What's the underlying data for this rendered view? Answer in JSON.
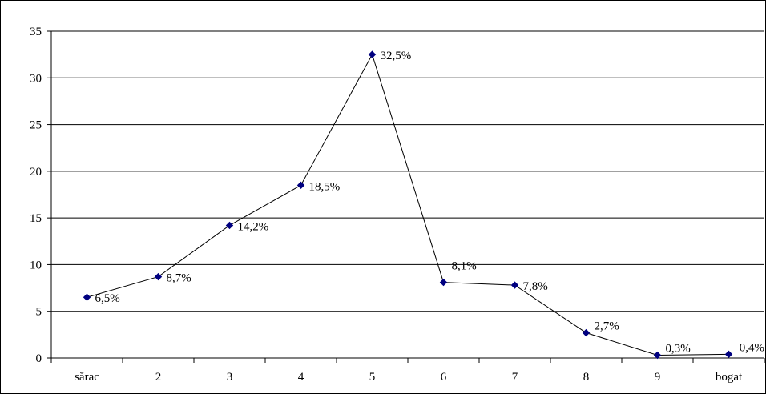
{
  "chart_data": {
    "type": "line",
    "title": "",
    "xlabel": "",
    "ylabel": "",
    "categories": [
      "sărac",
      "2",
      "3",
      "4",
      "5",
      "6",
      "7",
      "8",
      "9",
      "bogat"
    ],
    "series": [
      {
        "values": [
          6.5,
          8.7,
          14.2,
          18.5,
          32.5,
          8.1,
          7.8,
          2.7,
          0.3,
          0.4
        ],
        "data_labels": [
          "6,5%",
          "8,7%",
          "14,2%",
          "18,5%",
          "32,5%",
          "8,1%",
          "7,8%",
          "2,7%",
          "0,3%",
          "0,4%"
        ],
        "line_color": "#000000",
        "marker_color": "#000080",
        "marker": "diamond"
      }
    ],
    "ylim": [
      0,
      35
    ],
    "yticks": [
      0,
      5,
      10,
      15,
      20,
      25,
      30,
      35
    ],
    "grid": true,
    "legend": "none"
  }
}
